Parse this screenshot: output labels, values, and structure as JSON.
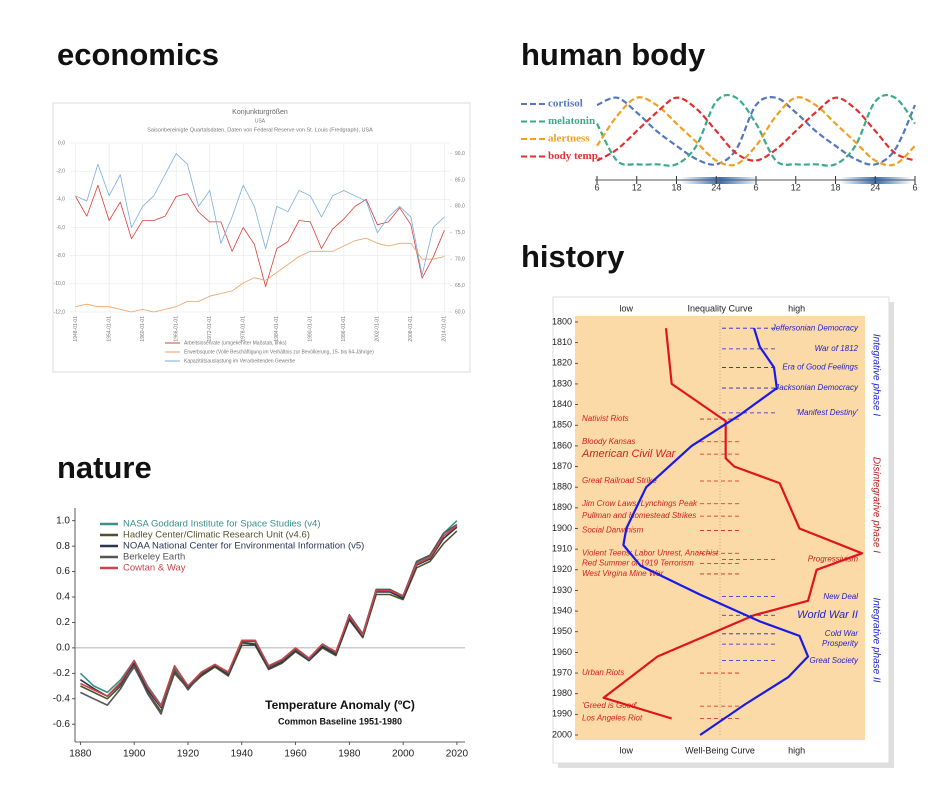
{
  "headings": [
    "economics",
    "human body",
    "history",
    "nature"
  ],
  "chart_data": [
    {
      "type": "line",
      "title": "Konjunkturgrößen",
      "subtitle": "USA",
      "description": "Saisonbereinigte Quartalsdaten, Daten von Federal Reserve von St. Louis (Fredgraph), USA",
      "x": [
        1948,
        1950,
        1952,
        1954,
        1956,
        1958,
        1960,
        1962,
        1964,
        1966,
        1968,
        1970,
        1972,
        1974,
        1976,
        1978,
        1980,
        1982,
        1984,
        1986,
        1988,
        1990,
        1992,
        1994,
        1996,
        1998,
        2000,
        2002,
        2004,
        2006,
        2008,
        2010,
        2012,
        2014
      ],
      "xlim": [
        1947,
        2015
      ],
      "xticks": [
        {
          "value": 1948,
          "label": "1948-01-01"
        },
        {
          "value": 1954,
          "label": "1954-01-01"
        },
        {
          "value": 1960,
          "label": "1960-01-01"
        },
        {
          "value": 1966,
          "label": "1966-01-01"
        },
        {
          "value": 1972,
          "label": "1972-01-01"
        },
        {
          "value": 1978,
          "label": "1978-01-01"
        },
        {
          "value": 1984,
          "label": "1984-01-01"
        },
        {
          "value": 1990,
          "label": "1990-01-01"
        },
        {
          "value": 1996,
          "label": "1996-01-01"
        },
        {
          "value": 2002,
          "label": "2002-01-01"
        },
        {
          "value": 2008,
          "label": "2008-01-01"
        },
        {
          "value": 2014,
          "label": "2014-01-01"
        }
      ],
      "ylim": [
        -12,
        0
      ],
      "yticks": [
        {
          "value": -12,
          "label": "-12,0"
        },
        {
          "value": -10,
          "label": "-10,0"
        },
        {
          "value": -8,
          "label": "-8,0"
        },
        {
          "value": -6,
          "label": "-6,0"
        },
        {
          "value": -4,
          "label": "-4,0"
        },
        {
          "value": -2,
          "label": "-2,0"
        },
        {
          "value": 0,
          "label": "0,0"
        }
      ],
      "y2lim": [
        60,
        92
      ],
      "y2ticks": [
        {
          "value": 60,
          "label": "60,0"
        },
        {
          "value": 65,
          "label": "65,0"
        },
        {
          "value": 70,
          "label": "70,0"
        },
        {
          "value": 75,
          "label": "75,0"
        },
        {
          "value": 80,
          "label": "80,0"
        },
        {
          "value": 85,
          "label": "85,0"
        },
        {
          "value": 90,
          "label": "90,0"
        }
      ],
      "grid": true,
      "legend": "bottom",
      "series": [
        {
          "name": "Arbeitslosenrate (umgekehrter Maßstab, links)",
          "color": "#d9403a",
          "values": [
            -3.8,
            -5.2,
            -3.0,
            -5.5,
            -4.2,
            -6.8,
            -5.5,
            -5.5,
            -5.2,
            -3.8,
            -3.6,
            -4.9,
            -5.6,
            -5.6,
            -7.7,
            -6.0,
            -7.2,
            -10.2,
            -7.5,
            -7.0,
            -5.5,
            -5.6,
            -7.5,
            -6.1,
            -5.4,
            -4.5,
            -4.0,
            -5.8,
            -5.6,
            -4.6,
            -5.8,
            -9.6,
            -8.1,
            -6.2
          ]
        },
        {
          "name": "Erwerbsquote (Volle Beschäftigung im Verhältnis zur Bevölkerung, 15- bis 64-Jährige)",
          "color": "#f0a060",
          "axis": "y2",
          "values": [
            61,
            61.5,
            61,
            61,
            60.5,
            60,
            60.5,
            60,
            60.5,
            61,
            62,
            62,
            63,
            63.5,
            64,
            65.5,
            66.5,
            66,
            67.5,
            69,
            70.5,
            71.5,
            71.5,
            71.5,
            72.5,
            73.5,
            74,
            73,
            72.5,
            73,
            73,
            70,
            70,
            70.5
          ]
        },
        {
          "name": "Kapazitätsauslastung im Verarbeitenden Gewerbe",
          "color": "#7aaee0",
          "axis": "y2",
          "values": [
            82,
            81,
            88,
            82,
            86,
            76,
            80,
            82,
            86,
            90,
            88,
            80,
            83,
            73,
            78,
            84,
            80,
            72,
            80,
            79,
            83,
            82,
            78,
            82,
            83,
            82,
            81,
            75,
            78,
            80,
            78,
            67,
            76,
            78
          ]
        }
      ]
    },
    {
      "type": "line",
      "smooth": true,
      "legend": "left",
      "x": [
        6,
        9,
        12,
        15,
        18,
        21,
        24,
        27,
        30,
        33,
        36,
        39,
        42,
        45,
        48,
        51,
        54
      ],
      "xlim": [
        6,
        54
      ],
      "xticks": [
        6,
        12,
        18,
        24,
        {
          "value": 30,
          "label": "6"
        },
        {
          "value": 36,
          "label": "12"
        },
        {
          "value": 42,
          "label": "18"
        },
        {
          "value": 48,
          "label": "24"
        },
        {
          "value": 54,
          "label": "6"
        }
      ],
      "ylim": [
        0,
        1
      ],
      "series": [
        {
          "name": "cortisol",
          "color": "#5577bb",
          "dashed": true,
          "values": [
            0.85,
            0.95,
            0.75,
            0.5,
            0.3,
            0.12,
            0.05,
            0.25,
            0.85,
            0.95,
            0.75,
            0.5,
            0.3,
            0.12,
            0.05,
            0.25,
            0.85
          ]
        },
        {
          "name": "melatonin",
          "color": "#3aaa88",
          "dashed": true,
          "values": [
            0.6,
            0.1,
            0.05,
            0.05,
            0.05,
            0.3,
            0.9,
            0.95,
            0.6,
            0.1,
            0.05,
            0.05,
            0.05,
            0.3,
            0.9,
            0.95,
            0.6
          ]
        },
        {
          "name": "alertness",
          "color": "#f0a020",
          "dashed": true,
          "values": [
            0.3,
            0.7,
            0.95,
            0.85,
            0.6,
            0.35,
            0.1,
            0.05,
            0.3,
            0.7,
            0.95,
            0.85,
            0.6,
            0.35,
            0.1,
            0.05,
            0.3
          ]
        },
        {
          "name": "body temp.",
          "color": "#e03030",
          "dashed": true,
          "values": [
            0.1,
            0.25,
            0.5,
            0.75,
            0.95,
            0.8,
            0.5,
            0.2,
            0.1,
            0.25,
            0.5,
            0.75,
            0.95,
            0.8,
            0.5,
            0.2,
            0.1
          ]
        }
      ]
    },
    {
      "type": "line",
      "orientation": "vertical",
      "xlim": [
        0,
        1
      ],
      "xticks": [
        {
          "value": 0.17,
          "label": "low"
        },
        {
          "value": 0.77,
          "label": "high"
        }
      ],
      "ylim": [
        1800,
        2000
      ],
      "yticks": [
        1800,
        1810,
        1820,
        1830,
        1840,
        1850,
        1860,
        1870,
        1880,
        1890,
        1900,
        1910,
        1920,
        1930,
        1940,
        1950,
        1960,
        1970,
        1980,
        1990,
        2000
      ],
      "series": [
        {
          "name": "Inequality Curve",
          "color": "#e0141e",
          "y": [
            1803,
            1830,
            1848,
            1866,
            1870,
            1878,
            1900,
            1912,
            1920,
            1935,
            1942,
            1962,
            1982,
            1992
          ],
          "values": [
            0.31,
            0.33,
            0.52,
            0.52,
            0.55,
            0.71,
            0.78,
            1.0,
            0.84,
            0.81,
            0.62,
            0.28,
            0.09,
            0.33
          ]
        },
        {
          "name": "Well-Being Curve",
          "color": "#1a1ae6",
          "y": [
            1803,
            1812,
            1822,
            1832,
            1845,
            1860,
            1880,
            1900,
            1908,
            1918,
            1932,
            1945,
            1952,
            1962,
            1972,
            1985,
            2000
          ],
          "values": [
            0.62,
            0.64,
            0.69,
            0.7,
            0.57,
            0.4,
            0.24,
            0.17,
            0.16,
            0.22,
            0.43,
            0.64,
            0.78,
            0.81,
            0.74,
            0.59,
            0.43
          ]
        }
      ],
      "events_left": [
        {
          "label": "Nativist Riots",
          "year": 1847,
          "color": "#d42020"
        },
        {
          "label": "Bloody Kansas",
          "year": 1858,
          "color": "#d42020"
        },
        {
          "label": "American Civil War",
          "year": 1864,
          "color": "#d42020",
          "large": true
        },
        {
          "label": "Great Railroad Strike",
          "year": 1877,
          "color": "#d42020"
        },
        {
          "label": "Jim Crow Laws, Lynchings Peak",
          "year": 1888,
          "color": "#d42020"
        },
        {
          "label": "Pullman and Homestead Strikes",
          "year": 1894,
          "color": "#d42020"
        },
        {
          "label": "Social Darwinism",
          "year": 1901,
          "color": "#d42020"
        },
        {
          "label": "Violent Teens: Labor Unrest, Anarchist",
          "year": 1912,
          "color": "#d42020"
        },
        {
          "label": "Red Summer of 1919        Terrorism",
          "year": 1917,
          "color": "#d42020"
        },
        {
          "label": "West Virgina Mine War",
          "year": 1922,
          "color": "#d42020"
        },
        {
          "label": "Urban Riots",
          "year": 1970,
          "color": "#d42020"
        },
        {
          "label": "'Greed is Good'",
          "year": 1986,
          "color": "#d42020"
        },
        {
          "label": "Los Angeles Riot",
          "year": 1992,
          "color": "#d42020"
        }
      ],
      "events_right": [
        {
          "label": "Jeffersonian Democracy",
          "year": 1803,
          "color": "#2222cc"
        },
        {
          "label": "War of 1812",
          "year": 1813,
          "color": "#2222cc"
        },
        {
          "label": "Era of Good Feelings",
          "year": 1822,
          "color": "#2222cc"
        },
        {
          "label": "Jacksonian Democracy",
          "year": 1832,
          "color": "#2222cc"
        },
        {
          "label": "'Manifest Destiny'",
          "year": 1844,
          "color": "#2222cc"
        },
        {
          "label": "Progressivism",
          "year": 1915,
          "color": "#c02020"
        },
        {
          "label": "New Deal",
          "year": 1933,
          "color": "#2222cc"
        },
        {
          "label": "World War II",
          "year": 1942,
          "color": "#2222cc",
          "large": true
        },
        {
          "label": "Cold War",
          "year": 1951,
          "color": "#2222cc"
        },
        {
          "label": "Prosperity",
          "year": 1956,
          "color": "#2222cc"
        },
        {
          "label": "Great Society",
          "year": 1964,
          "color": "#2222cc"
        }
      ],
      "phases": [
        {
          "label": "Integrative phase I",
          "color": "#2222cc"
        },
        {
          "label": "Disintegrative phase I",
          "color": "#c02020"
        },
        {
          "label": "Integrative phase II",
          "color": "#2222cc"
        }
      ]
    },
    {
      "type": "line",
      "zero_line": true,
      "legend": "top-left",
      "x": [
        1880,
        1885,
        1890,
        1895,
        1900,
        1905,
        1910,
        1915,
        1920,
        1925,
        1930,
        1935,
        1940,
        1945,
        1950,
        1955,
        1960,
        1965,
        1970,
        1975,
        1980,
        1985,
        1990,
        1995,
        2000,
        2005,
        2010,
        2015,
        2020
      ],
      "xlim": [
        1878,
        2023
      ],
      "xticks": [
        1880,
        1900,
        1920,
        1940,
        1960,
        1980,
        2000,
        2020
      ],
      "ylim": [
        -0.74,
        1.1
      ],
      "yticks": [
        -0.6,
        -0.4,
        -0.2,
        {
          "value": 0,
          "label": "0.0"
        },
        0.2,
        0.4,
        0.6,
        0.8,
        {
          "value": 1,
          "label": "1.0"
        }
      ],
      "annotations": [
        "Temperature Anomaly (ºC)",
        "Common Baseline 1951-1980"
      ],
      "series": [
        {
          "name": "NASA Goddard Institute for Space Studies (v4)",
          "color": "#3a8f8a",
          "values": [
            -0.2,
            -0.3,
            -0.35,
            -0.25,
            -0.1,
            -0.3,
            -0.45,
            -0.15,
            -0.3,
            -0.2,
            -0.15,
            -0.2,
            0.05,
            0.05,
            -0.15,
            -0.1,
            -0.02,
            -0.1,
            0.02,
            -0.05,
            0.25,
            0.1,
            0.45,
            0.45,
            0.4,
            0.67,
            0.72,
            0.9,
            1.0
          ]
        },
        {
          "name": "Hadley Center/Climatic Research Unit (v4.6)",
          "color": "#55502a",
          "values": [
            -0.3,
            -0.35,
            -0.4,
            -0.3,
            -0.15,
            -0.35,
            -0.5,
            -0.2,
            -0.32,
            -0.22,
            -0.15,
            -0.22,
            0.02,
            0.02,
            -0.17,
            -0.12,
            -0.03,
            -0.1,
            0.0,
            -0.06,
            0.22,
            0.08,
            0.42,
            0.42,
            0.38,
            0.63,
            0.68,
            0.82,
            0.92
          ]
        },
        {
          "name": "NOAA National Center for Environmental Information (v5)",
          "color": "#2d3550",
          "values": [
            -0.25,
            -0.32,
            -0.38,
            -0.28,
            -0.12,
            -0.33,
            -0.47,
            -0.18,
            -0.31,
            -0.21,
            -0.14,
            -0.21,
            0.04,
            0.03,
            -0.16,
            -0.11,
            -0.02,
            -0.1,
            0.01,
            -0.05,
            0.23,
            0.09,
            0.44,
            0.44,
            0.39,
            0.65,
            0.7,
            0.86,
            0.95
          ]
        },
        {
          "name": "Berkeley Earth",
          "color": "#555555",
          "values": [
            -0.35,
            -0.4,
            -0.45,
            -0.32,
            -0.14,
            -0.36,
            -0.52,
            -0.17,
            -0.33,
            -0.2,
            -0.13,
            -0.2,
            0.05,
            0.05,
            -0.15,
            -0.1,
            -0.01,
            -0.09,
            0.03,
            -0.04,
            0.26,
            0.11,
            0.46,
            0.46,
            0.41,
            0.68,
            0.73,
            0.9,
            0.97
          ]
        },
        {
          "name": "Cowtan & Way",
          "color": "#c8464a",
          "values": [
            -0.28,
            -0.33,
            -0.38,
            -0.27,
            -0.1,
            -0.31,
            -0.46,
            -0.14,
            -0.3,
            -0.19,
            -0.13,
            -0.19,
            0.06,
            0.06,
            -0.14,
            -0.09,
            0.0,
            -0.08,
            0.03,
            -0.03,
            0.25,
            0.1,
            0.45,
            0.45,
            0.41,
            0.66,
            0.71,
            0.88,
            0.96
          ]
        }
      ]
    }
  ]
}
